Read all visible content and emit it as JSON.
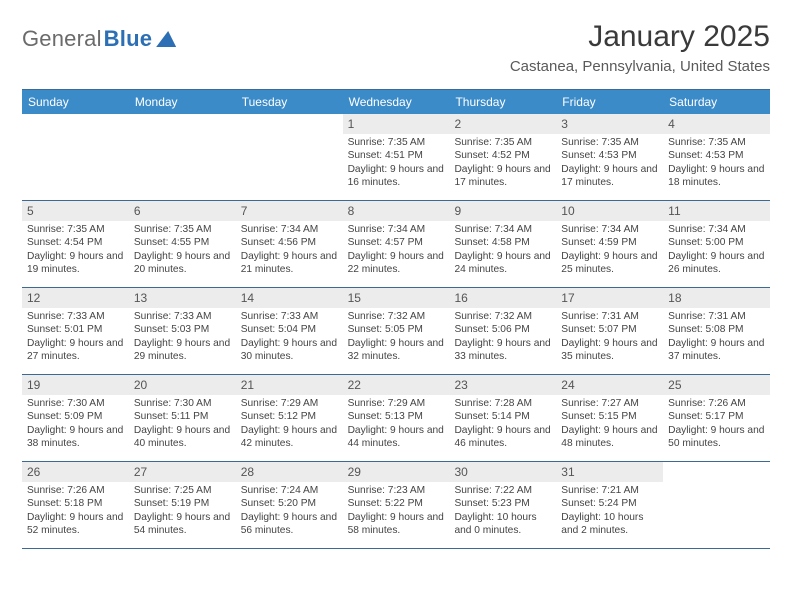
{
  "logo": {
    "part1": "General",
    "part2": "Blue"
  },
  "title": "January 2025",
  "location": "Castanea, Pennsylvania, United States",
  "colors": {
    "header_bg": "#3b8bc9",
    "header_text": "#ffffff",
    "border": "#3b6a93",
    "shade_bg": "#ececec",
    "text": "#424242",
    "logo_gray": "#6b6b6b",
    "logo_blue": "#2d6fb5"
  },
  "day_headers": [
    "Sunday",
    "Monday",
    "Tuesday",
    "Wednesday",
    "Thursday",
    "Friday",
    "Saturday"
  ],
  "weeks": [
    [
      {
        "num": "",
        "sunrise": "",
        "sunset": "",
        "daylight": ""
      },
      {
        "num": "",
        "sunrise": "",
        "sunset": "",
        "daylight": ""
      },
      {
        "num": "",
        "sunrise": "",
        "sunset": "",
        "daylight": ""
      },
      {
        "num": "1",
        "sunrise": "Sunrise: 7:35 AM",
        "sunset": "Sunset: 4:51 PM",
        "daylight": "Daylight: 9 hours and 16 minutes."
      },
      {
        "num": "2",
        "sunrise": "Sunrise: 7:35 AM",
        "sunset": "Sunset: 4:52 PM",
        "daylight": "Daylight: 9 hours and 17 minutes."
      },
      {
        "num": "3",
        "sunrise": "Sunrise: 7:35 AM",
        "sunset": "Sunset: 4:53 PM",
        "daylight": "Daylight: 9 hours and 17 minutes."
      },
      {
        "num": "4",
        "sunrise": "Sunrise: 7:35 AM",
        "sunset": "Sunset: 4:53 PM",
        "daylight": "Daylight: 9 hours and 18 minutes."
      }
    ],
    [
      {
        "num": "5",
        "sunrise": "Sunrise: 7:35 AM",
        "sunset": "Sunset: 4:54 PM",
        "daylight": "Daylight: 9 hours and 19 minutes."
      },
      {
        "num": "6",
        "sunrise": "Sunrise: 7:35 AM",
        "sunset": "Sunset: 4:55 PM",
        "daylight": "Daylight: 9 hours and 20 minutes."
      },
      {
        "num": "7",
        "sunrise": "Sunrise: 7:34 AM",
        "sunset": "Sunset: 4:56 PM",
        "daylight": "Daylight: 9 hours and 21 minutes."
      },
      {
        "num": "8",
        "sunrise": "Sunrise: 7:34 AM",
        "sunset": "Sunset: 4:57 PM",
        "daylight": "Daylight: 9 hours and 22 minutes."
      },
      {
        "num": "9",
        "sunrise": "Sunrise: 7:34 AM",
        "sunset": "Sunset: 4:58 PM",
        "daylight": "Daylight: 9 hours and 24 minutes."
      },
      {
        "num": "10",
        "sunrise": "Sunrise: 7:34 AM",
        "sunset": "Sunset: 4:59 PM",
        "daylight": "Daylight: 9 hours and 25 minutes."
      },
      {
        "num": "11",
        "sunrise": "Sunrise: 7:34 AM",
        "sunset": "Sunset: 5:00 PM",
        "daylight": "Daylight: 9 hours and 26 minutes."
      }
    ],
    [
      {
        "num": "12",
        "sunrise": "Sunrise: 7:33 AM",
        "sunset": "Sunset: 5:01 PM",
        "daylight": "Daylight: 9 hours and 27 minutes."
      },
      {
        "num": "13",
        "sunrise": "Sunrise: 7:33 AM",
        "sunset": "Sunset: 5:03 PM",
        "daylight": "Daylight: 9 hours and 29 minutes."
      },
      {
        "num": "14",
        "sunrise": "Sunrise: 7:33 AM",
        "sunset": "Sunset: 5:04 PM",
        "daylight": "Daylight: 9 hours and 30 minutes."
      },
      {
        "num": "15",
        "sunrise": "Sunrise: 7:32 AM",
        "sunset": "Sunset: 5:05 PM",
        "daylight": "Daylight: 9 hours and 32 minutes."
      },
      {
        "num": "16",
        "sunrise": "Sunrise: 7:32 AM",
        "sunset": "Sunset: 5:06 PM",
        "daylight": "Daylight: 9 hours and 33 minutes."
      },
      {
        "num": "17",
        "sunrise": "Sunrise: 7:31 AM",
        "sunset": "Sunset: 5:07 PM",
        "daylight": "Daylight: 9 hours and 35 minutes."
      },
      {
        "num": "18",
        "sunrise": "Sunrise: 7:31 AM",
        "sunset": "Sunset: 5:08 PM",
        "daylight": "Daylight: 9 hours and 37 minutes."
      }
    ],
    [
      {
        "num": "19",
        "sunrise": "Sunrise: 7:30 AM",
        "sunset": "Sunset: 5:09 PM",
        "daylight": "Daylight: 9 hours and 38 minutes."
      },
      {
        "num": "20",
        "sunrise": "Sunrise: 7:30 AM",
        "sunset": "Sunset: 5:11 PM",
        "daylight": "Daylight: 9 hours and 40 minutes."
      },
      {
        "num": "21",
        "sunrise": "Sunrise: 7:29 AM",
        "sunset": "Sunset: 5:12 PM",
        "daylight": "Daylight: 9 hours and 42 minutes."
      },
      {
        "num": "22",
        "sunrise": "Sunrise: 7:29 AM",
        "sunset": "Sunset: 5:13 PM",
        "daylight": "Daylight: 9 hours and 44 minutes."
      },
      {
        "num": "23",
        "sunrise": "Sunrise: 7:28 AM",
        "sunset": "Sunset: 5:14 PM",
        "daylight": "Daylight: 9 hours and 46 minutes."
      },
      {
        "num": "24",
        "sunrise": "Sunrise: 7:27 AM",
        "sunset": "Sunset: 5:15 PM",
        "daylight": "Daylight: 9 hours and 48 minutes."
      },
      {
        "num": "25",
        "sunrise": "Sunrise: 7:26 AM",
        "sunset": "Sunset: 5:17 PM",
        "daylight": "Daylight: 9 hours and 50 minutes."
      }
    ],
    [
      {
        "num": "26",
        "sunrise": "Sunrise: 7:26 AM",
        "sunset": "Sunset: 5:18 PM",
        "daylight": "Daylight: 9 hours and 52 minutes."
      },
      {
        "num": "27",
        "sunrise": "Sunrise: 7:25 AM",
        "sunset": "Sunset: 5:19 PM",
        "daylight": "Daylight: 9 hours and 54 minutes."
      },
      {
        "num": "28",
        "sunrise": "Sunrise: 7:24 AM",
        "sunset": "Sunset: 5:20 PM",
        "daylight": "Daylight: 9 hours and 56 minutes."
      },
      {
        "num": "29",
        "sunrise": "Sunrise: 7:23 AM",
        "sunset": "Sunset: 5:22 PM",
        "daylight": "Daylight: 9 hours and 58 minutes."
      },
      {
        "num": "30",
        "sunrise": "Sunrise: 7:22 AM",
        "sunset": "Sunset: 5:23 PM",
        "daylight": "Daylight: 10 hours and 0 minutes."
      },
      {
        "num": "31",
        "sunrise": "Sunrise: 7:21 AM",
        "sunset": "Sunset: 5:24 PM",
        "daylight": "Daylight: 10 hours and 2 minutes."
      },
      {
        "num": "",
        "sunrise": "",
        "sunset": "",
        "daylight": ""
      }
    ]
  ]
}
